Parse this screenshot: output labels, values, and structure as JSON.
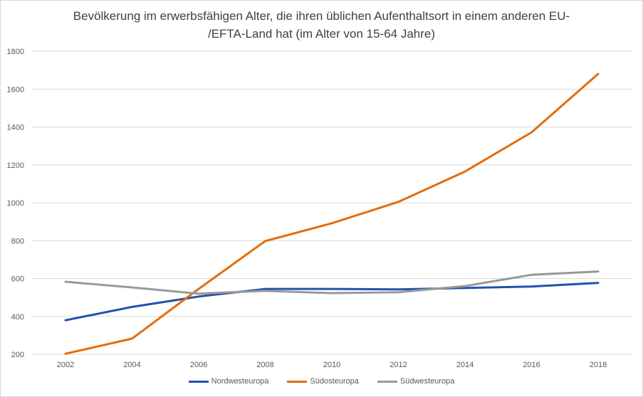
{
  "chart_data": {
    "type": "line",
    "title": "Bevölkerung im erwerbsfähigen Alter, die ihren üblichen Aufenthaltsort in einem anderen EU-/EFTA-Land hat (im Alter von 15-64 Jahre)",
    "title_lines": [
      "Bevölkerung im erwerbsfähigen Alter, die ihren üblichen Aufenthaltsort in einem anderen EU-",
      "/EFTA-Land hat (im Alter von 15-64 Jahre)"
    ],
    "x": [
      "2002",
      "2004",
      "2006",
      "2008",
      "2010",
      "2012",
      "2014",
      "2016",
      "2018"
    ],
    "series": [
      {
        "name": "Nordwesteuropa",
        "color": "#2152AE",
        "values": [
          380,
          450,
          505,
          545,
          545,
          543,
          550,
          558,
          577
        ]
      },
      {
        "name": "Südosteuropa",
        "color": "#E36C0A",
        "values": [
          203,
          283,
          545,
          798,
          892,
          1005,
          1165,
          1372,
          1680
        ]
      },
      {
        "name": "Südwesteuropa",
        "color": "#999999",
        "values": [
          583,
          553,
          520,
          535,
          523,
          528,
          560,
          620,
          637
        ]
      }
    ],
    "xlabel": "",
    "ylabel": "",
    "ylim": [
      200,
      1800
    ],
    "yticks": [
      200,
      400,
      600,
      800,
      1000,
      1200,
      1400,
      1600,
      1800
    ],
    "grid": true,
    "legend_position": "bottom"
  }
}
